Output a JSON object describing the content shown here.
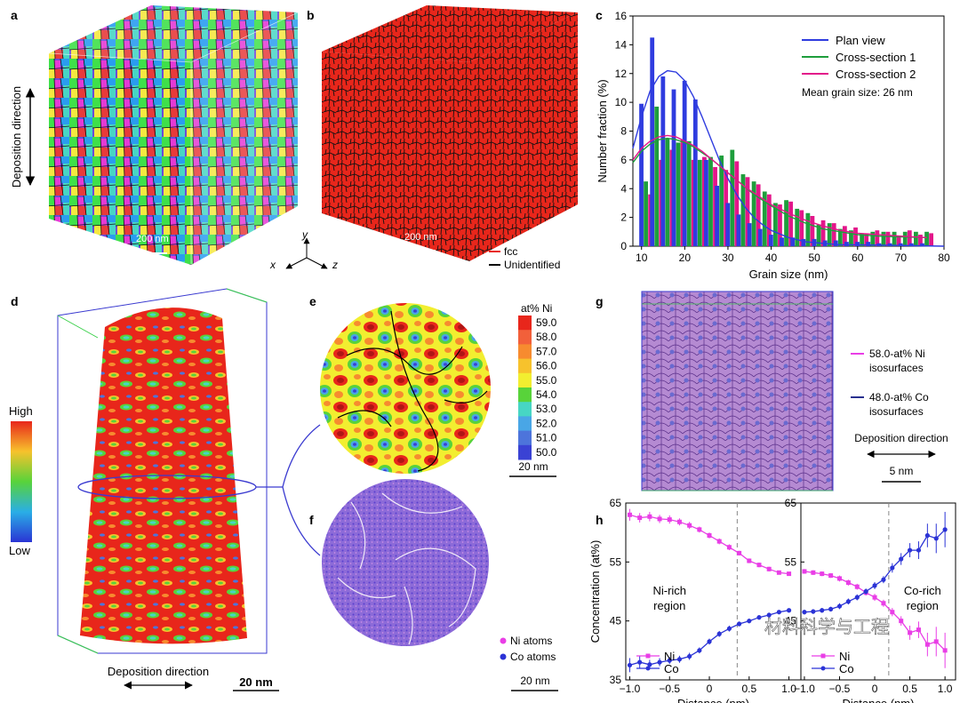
{
  "panel_labels": {
    "a": "a",
    "b": "b",
    "c": "c",
    "d": "d",
    "e": "e",
    "f": "f",
    "g": "g",
    "h": "h"
  },
  "panel_a": {
    "deposition_label": "Deposition direction",
    "scale_bar": "200 nm"
  },
  "panel_b": {
    "scale_bar": "200 nm",
    "legend": [
      {
        "label": "fcc",
        "color": "#e8261b"
      },
      {
        "label": "Unidentified",
        "color": "#000000"
      }
    ]
  },
  "axes_triad": {
    "x": "x",
    "y": "y",
    "z": "z"
  },
  "panel_d": {
    "colorbar_high": "High",
    "colorbar_low": "Low",
    "deposition_label": "Deposition direction",
    "scale_bar": "20 nm"
  },
  "panel_e": {
    "colorbar_title": "at% Ni",
    "colorbar_ticks": [
      "59.0",
      "58.0",
      "57.0",
      "56.0",
      "55.0",
      "54.0",
      "53.0",
      "52.0",
      "51.0",
      "50.0"
    ],
    "colorbar_colors": [
      "#e8261b",
      "#f2603a",
      "#f78b2f",
      "#f7c22c",
      "#f2ee30",
      "#58d33a",
      "#47d6c4",
      "#49a6e6",
      "#4d74db",
      "#3a42d4"
    ],
    "scale_bar": "20 nm"
  },
  "panel_f": {
    "legend": [
      {
        "label": "Ni atoms",
        "color": "#e93ee6"
      },
      {
        "label": "Co atoms",
        "color": "#2b33d6"
      }
    ],
    "scale_bar": "20 nm"
  },
  "panel_g": {
    "legend": [
      {
        "label": "58.0-at% Ni",
        "label2": "isosurfaces",
        "color": "#e93ee6"
      },
      {
        "label": "48.0-at% Co",
        "label2": "isosurfaces",
        "color": "#28308f"
      }
    ],
    "deposition_label": "Deposition direction",
    "scale_bar": "5 nm"
  },
  "chart_data": [
    {
      "panel": "c",
      "type": "bar",
      "xlabel": "Grain size (nm)",
      "ylabel": "Number fraction (%)",
      "xlim": [
        8,
        80
      ],
      "ylim": [
        0,
        16
      ],
      "xticks": [
        10,
        20,
        30,
        40,
        50,
        60,
        70,
        80
      ],
      "yticks": [
        0,
        2,
        4,
        6,
        8,
        10,
        12,
        14,
        16
      ],
      "x": [
        11,
        13.5,
        16,
        18.5,
        21,
        23.5,
        26,
        28.5,
        31,
        33.5,
        36,
        38.5,
        41,
        43.5,
        46,
        48.5,
        51,
        53.5,
        56,
        58.5,
        61,
        63.5,
        66,
        68.5,
        71,
        73.5,
        76
      ],
      "series": [
        {
          "name": "Plan view",
          "color": "#2f3cdf",
          "values": [
            9.9,
            14.5,
            11.8,
            10.9,
            11.5,
            10.2,
            6.0,
            4.2,
            3.0,
            2.2,
            1.6,
            1.2,
            0.8,
            0.6,
            0.6,
            0.5,
            0.5,
            0.4,
            0.4,
            0.3,
            0.3,
            0.3,
            0.2,
            0.2,
            0.2,
            0.2,
            0.2
          ]
        },
        {
          "name": "Cross-section 1",
          "color": "#1e9e3c",
          "values": [
            4.5,
            9.7,
            7.5,
            7.2,
            7.3,
            6.0,
            6.2,
            6.3,
            6.7,
            5.0,
            4.5,
            3.8,
            3.0,
            3.2,
            2.6,
            2.3,
            1.5,
            1.6,
            1.2,
            1.1,
            0.9,
            1.0,
            1.0,
            1.0,
            1.0,
            1.0,
            1.0
          ]
        },
        {
          "name": "Cross-section 2",
          "color": "#e3168a",
          "values": [
            3.6,
            6.0,
            6.7,
            7.4,
            6.0,
            6.2,
            5.5,
            5.3,
            5.9,
            4.8,
            4.3,
            3.6,
            2.9,
            3.1,
            2.5,
            2.1,
            1.8,
            1.6,
            1.4,
            1.3,
            0.9,
            1.1,
            1.0,
            0.7,
            1.1,
            0.8,
            0.9
          ]
        }
      ],
      "fits": [
        {
          "name": "Plan view",
          "color": "#2f3cdf",
          "x": [
            8,
            10,
            12,
            14,
            16,
            18,
            20,
            22,
            24,
            26,
            28,
            30,
            32,
            34,
            36,
            38,
            40,
            44,
            48,
            52,
            56,
            60,
            70,
            80
          ],
          "y": [
            6.8,
            9.0,
            10.8,
            11.8,
            12.2,
            12.1,
            11.5,
            10.4,
            9.0,
            7.5,
            6.0,
            4.7,
            3.6,
            2.7,
            2.0,
            1.5,
            1.1,
            0.6,
            0.3,
            0.2,
            0.1,
            0.1,
            0.05,
            0.0
          ]
        },
        {
          "name": "Cross-section 1",
          "color": "#1e9e3c",
          "x": [
            8,
            10,
            12,
            14,
            16,
            18,
            20,
            22,
            24,
            26,
            28,
            30,
            32,
            34,
            36,
            38,
            40,
            44,
            48,
            52,
            56,
            60,
            65,
            70,
            76
          ],
          "y": [
            5.8,
            6.6,
            7.1,
            7.4,
            7.5,
            7.4,
            7.2,
            6.9,
            6.5,
            6.1,
            5.6,
            5.1,
            4.6,
            4.1,
            3.6,
            3.2,
            2.8,
            2.1,
            1.6,
            1.2,
            1.0,
            0.8,
            0.7,
            0.65,
            0.6
          ]
        },
        {
          "name": "Cross-section 2",
          "color": "#e3168a",
          "x": [
            8,
            10,
            12,
            14,
            16,
            18,
            20,
            22,
            24,
            26,
            28,
            30,
            32,
            34,
            36,
            38,
            40,
            44,
            48,
            52,
            56,
            60,
            65,
            70,
            76
          ],
          "y": [
            6.0,
            6.8,
            7.3,
            7.6,
            7.7,
            7.6,
            7.3,
            7.0,
            6.6,
            6.1,
            5.6,
            5.1,
            4.6,
            4.1,
            3.7,
            3.3,
            2.9,
            2.3,
            1.8,
            1.4,
            1.1,
            0.9,
            0.8,
            0.7,
            0.6
          ]
        }
      ],
      "annotation": "Mean grain size: 26 nm",
      "legend_position": "top-right"
    },
    {
      "panel": "h-left",
      "type": "line",
      "xlabel": "Distance (nm)",
      "ylabel": "Concentration (at%)",
      "xlim": [
        -1.05,
        1.15
      ],
      "ylim": [
        35,
        65
      ],
      "xticks": [
        -1.0,
        -0.5,
        0,
        0.5,
        1.0
      ],
      "xtick_labels": [
        "−1.0",
        "−0.5",
        "0",
        "0.5",
        "1.0"
      ],
      "yticks": [
        35,
        45,
        55,
        65
      ],
      "dashed_x": 0.35,
      "region_label": [
        "Ni-rich",
        "region"
      ],
      "series": [
        {
          "name": "Ni",
          "color": "#e93ee6",
          "marker": "square",
          "x": [
            -1.0,
            -0.875,
            -0.75,
            -0.625,
            -0.5,
            -0.375,
            -0.25,
            -0.125,
            0,
            0.125,
            0.25,
            0.375,
            0.5,
            0.625,
            0.75,
            0.875,
            1.0
          ],
          "y": [
            63.0,
            62.5,
            62.7,
            62.3,
            62.2,
            61.8,
            61.2,
            60.5,
            59.5,
            58.5,
            57.5,
            56.5,
            55.2,
            54.5,
            53.8,
            53.2,
            53.0
          ],
          "err": [
            1.0,
            0.8,
            0.8,
            0.7,
            0.7,
            0.6,
            0.6,
            0.5,
            0.5,
            0.5,
            0.5,
            0.4,
            0.4,
            0.4,
            0.4,
            0.3,
            0.3
          ]
        },
        {
          "name": "Co",
          "color": "#2b33d6",
          "marker": "circle",
          "x": [
            -1.0,
            -0.875,
            -0.75,
            -0.625,
            -0.5,
            -0.375,
            -0.25,
            -0.125,
            0,
            0.125,
            0.25,
            0.375,
            0.5,
            0.625,
            0.75,
            0.875,
            1.0
          ],
          "y": [
            37.5,
            38.0,
            37.6,
            38.0,
            38.3,
            38.5,
            39.0,
            40.0,
            41.5,
            42.8,
            43.7,
            44.5,
            45.0,
            45.6,
            46.0,
            46.5,
            46.8
          ],
          "err": [
            1.2,
            1.0,
            0.8,
            0.7,
            0.6,
            0.6,
            0.6,
            0.5,
            0.5,
            0.5,
            0.5,
            0.4,
            0.4,
            0.4,
            0.4,
            0.3,
            0.3
          ]
        }
      ]
    },
    {
      "panel": "h-right",
      "type": "line",
      "xlabel": "Distance (nm)",
      "xlim": [
        -1.05,
        1.15
      ],
      "ylim": [
        35,
        65
      ],
      "xticks": [
        -1.0,
        -0.5,
        0,
        0.5,
        1.0
      ],
      "xtick_labels": [
        "−1.0",
        "−0.5",
        "0",
        "0.5",
        "1.0"
      ],
      "yticks": [
        45,
        55,
        65
      ],
      "dashed_x": 0.2,
      "region_label": [
        "Co-rich",
        "region"
      ],
      "series": [
        {
          "name": "Ni",
          "color": "#e93ee6",
          "marker": "square",
          "x": [
            -1.0,
            -0.875,
            -0.75,
            -0.625,
            -0.5,
            -0.375,
            -0.25,
            -0.125,
            0,
            0.125,
            0.25,
            0.375,
            0.5,
            0.625,
            0.75,
            0.875,
            1.0
          ],
          "y": [
            53.4,
            53.2,
            53.0,
            52.7,
            52.2,
            51.5,
            50.8,
            49.8,
            49.0,
            48.0,
            46.5,
            45.0,
            43.0,
            43.5,
            41.0,
            41.5,
            40.0
          ],
          "err": [
            0.4,
            0.4,
            0.4,
            0.4,
            0.5,
            0.5,
            0.5,
            0.5,
            0.6,
            0.6,
            0.7,
            0.8,
            1.2,
            1.4,
            2.0,
            2.5,
            3.0
          ]
        },
        {
          "name": "Co",
          "color": "#2b33d6",
          "marker": "circle",
          "x": [
            -1.0,
            -0.875,
            -0.75,
            -0.625,
            -0.5,
            -0.375,
            -0.25,
            -0.125,
            0,
            0.125,
            0.25,
            0.375,
            0.5,
            0.625,
            0.75,
            0.875,
            1.0
          ],
          "y": [
            46.5,
            46.6,
            46.8,
            47.0,
            47.5,
            48.3,
            49.0,
            50.0,
            51.0,
            52.0,
            54.0,
            55.5,
            57.0,
            57.0,
            59.5,
            59.0,
            60.5
          ],
          "err": [
            0.4,
            0.4,
            0.4,
            0.4,
            0.5,
            0.5,
            0.5,
            0.5,
            0.6,
            0.6,
            0.8,
            1.0,
            1.2,
            1.5,
            2.0,
            2.5,
            3.0
          ]
        }
      ]
    }
  ],
  "watermark": "材料科学与工程"
}
